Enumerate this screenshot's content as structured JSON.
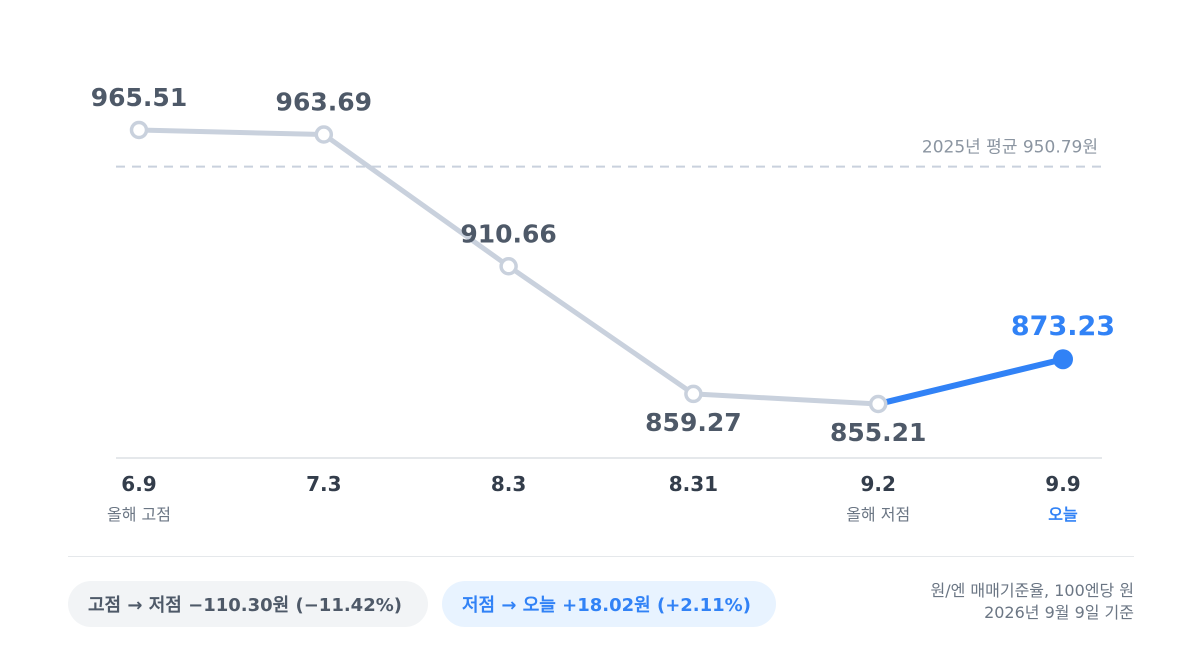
{
  "chart_data": {
    "type": "line",
    "categories": [
      "6.9",
      "7.3",
      "8.3",
      "8.31",
      "9.2",
      "9.9"
    ],
    "category_sublabels": [
      "올해 고점",
      "",
      "",
      "",
      "올해 저점",
      "오늘"
    ],
    "values": [
      965.51,
      963.69,
      910.66,
      859.27,
      855.21,
      873.23
    ],
    "value_labels": [
      "965.51",
      "963.69",
      "910.66",
      "859.27",
      "855.21",
      "873.23"
    ],
    "highlight_last": true,
    "reference_line": {
      "value": 950.79,
      "label": "2025년 평균 950.79원"
    },
    "ylim": [
      840,
      975
    ],
    "grid": false,
    "colors": {
      "line": "#c9d1dd",
      "highlight": "#3182f6",
      "reference": "#c9d1dd"
    }
  },
  "summary": {
    "high_to_low": "고점 → 저점 −110.30원 (−11.42%)",
    "low_to_today": "저점 → 오늘 +18.02원 (+2.11%)"
  },
  "footnote": {
    "line1": "원/엔 매매기준율, 100엔당 원",
    "line2": "2026년 9월 9일 기준"
  }
}
